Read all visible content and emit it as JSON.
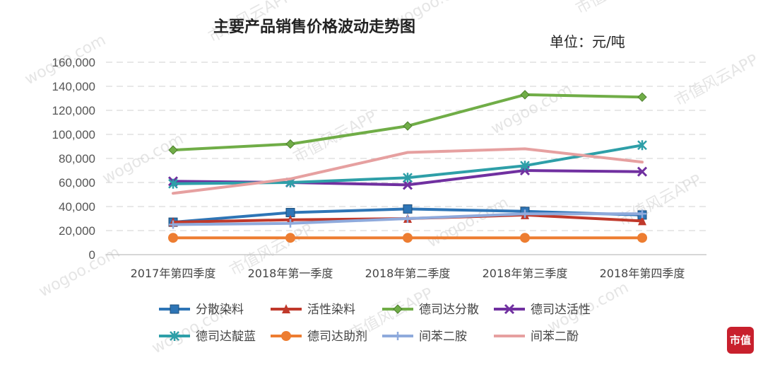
{
  "chart_data": {
    "type": "line",
    "title": "主要产品销售价格波动走势图",
    "unit_label": "单位：元/吨",
    "categories": [
      "2017年第四季度",
      "2018年第一季度",
      "2018年第二季度",
      "2018年第三季度",
      "2018年第四季度"
    ],
    "ylim": [
      0,
      160000
    ],
    "yticks": [
      "0",
      "20,000",
      "40,000",
      "60,000",
      "80,000",
      "100,000",
      "120,000",
      "140,000",
      "160,000"
    ],
    "grid": true,
    "legend_position": "bottom",
    "series": [
      {
        "name": "分散染料",
        "color": "#2e75b6",
        "marker": "square",
        "values": [
          27000,
          35000,
          38000,
          36000,
          33000
        ]
      },
      {
        "name": "活性染料",
        "color": "#c0392b",
        "marker": "triangle",
        "values": [
          27000,
          29000,
          30000,
          33000,
          28000
        ]
      },
      {
        "name": "德司达分散",
        "color": "#70ad47",
        "marker": "diamond",
        "values": [
          87000,
          92000,
          107000,
          133000,
          131000
        ]
      },
      {
        "name": "德司达活性",
        "color": "#7030a0",
        "marker": "x",
        "values": [
          61000,
          60000,
          58000,
          70000,
          69000
        ]
      },
      {
        "name": "德司达靛蓝",
        "color": "#2e9fa8",
        "marker": "asterisk",
        "values": [
          59000,
          60000,
          64000,
          74000,
          91000
        ]
      },
      {
        "name": "德司达助剂",
        "color": "#ed7d31",
        "marker": "circle",
        "values": [
          14000,
          14000,
          14000,
          14000,
          14000
        ]
      },
      {
        "name": "间苯二胺",
        "color": "#8faadc",
        "marker": "plus",
        "values": [
          25000,
          26000,
          30000,
          34000,
          34000
        ]
      },
      {
        "name": "间苯二酚",
        "color": "#e6a0a0",
        "marker": "none",
        "values": [
          51000,
          63000,
          85000,
          88000,
          77000
        ]
      }
    ]
  },
  "watermark": {
    "site": "wogoo.com",
    "app": "市值风云APP"
  },
  "logo": {
    "text": "市值"
  }
}
